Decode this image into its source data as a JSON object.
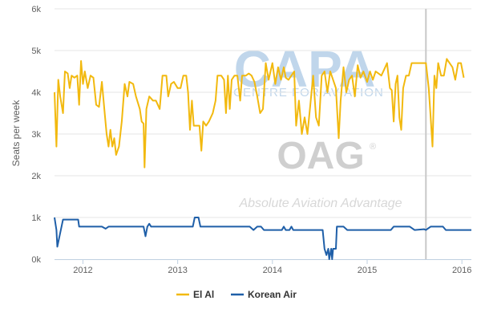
{
  "chart_data": {
    "type": "line",
    "title": "",
    "xlabel": "",
    "ylabel": "Seats per week",
    "ylim": [
      0,
      6000
    ],
    "xlim": [
      2011.7,
      2016.1
    ],
    "x_ticks": [
      2012,
      2013,
      2014,
      2015,
      2016
    ],
    "x_tick_labels": [
      "2012",
      "2013",
      "2014",
      "2015",
      "2016"
    ],
    "y_ticks": [
      0,
      1000,
      2000,
      3000,
      4000,
      5000,
      6000
    ],
    "y_tick_labels": [
      "0k",
      "1k",
      "2k",
      "3k",
      "4k",
      "5k",
      "6k"
    ],
    "grid": "horizontal",
    "legend_position": "bottom-center",
    "vertical_marker_x": 2015.62,
    "series": [
      {
        "name": "El Al",
        "color": "#F2B90F",
        "points": [
          [
            2011.7,
            4000
          ],
          [
            2011.72,
            2700
          ],
          [
            2011.74,
            4300
          ],
          [
            2011.76,
            3900
          ],
          [
            2011.79,
            3500
          ],
          [
            2011.81,
            4500
          ],
          [
            2011.84,
            4450
          ],
          [
            2011.86,
            4100
          ],
          [
            2011.88,
            4400
          ],
          [
            2011.91,
            4350
          ],
          [
            2011.94,
            4400
          ],
          [
            2011.96,
            3700
          ],
          [
            2011.98,
            4750
          ],
          [
            2012.0,
            4200
          ],
          [
            2012.02,
            4500
          ],
          [
            2012.05,
            4100
          ],
          [
            2012.08,
            4400
          ],
          [
            2012.11,
            4350
          ],
          [
            2012.14,
            3700
          ],
          [
            2012.17,
            3650
          ],
          [
            2012.2,
            4250
          ],
          [
            2012.23,
            3500
          ],
          [
            2012.25,
            3000
          ],
          [
            2012.27,
            2700
          ],
          [
            2012.29,
            3100
          ],
          [
            2012.31,
            2700
          ],
          [
            2012.33,
            2900
          ],
          [
            2012.35,
            2500
          ],
          [
            2012.38,
            2700
          ],
          [
            2012.41,
            3300
          ],
          [
            2012.44,
            4200
          ],
          [
            2012.47,
            3900
          ],
          [
            2012.49,
            4250
          ],
          [
            2012.53,
            4200
          ],
          [
            2012.56,
            3900
          ],
          [
            2012.6,
            3600
          ],
          [
            2012.62,
            3300
          ],
          [
            2012.64,
            3250
          ],
          [
            2012.65,
            2200
          ],
          [
            2012.67,
            3600
          ],
          [
            2012.7,
            3900
          ],
          [
            2012.74,
            3800
          ],
          [
            2012.77,
            3800
          ],
          [
            2012.81,
            3600
          ],
          [
            2012.84,
            4400
          ],
          [
            2012.88,
            4400
          ],
          [
            2012.9,
            3900
          ],
          [
            2012.93,
            4200
          ],
          [
            2012.96,
            4250
          ],
          [
            2013.0,
            4100
          ],
          [
            2013.03,
            4100
          ],
          [
            2013.06,
            4400
          ],
          [
            2013.09,
            4400
          ],
          [
            2013.11,
            4000
          ],
          [
            2013.13,
            3100
          ],
          [
            2013.15,
            3800
          ],
          [
            2013.17,
            3200
          ],
          [
            2013.2,
            3200
          ],
          [
            2013.23,
            3200
          ],
          [
            2013.25,
            2600
          ],
          [
            2013.27,
            3300
          ],
          [
            2013.3,
            3200
          ],
          [
            2013.33,
            3300
          ],
          [
            2013.37,
            3500
          ],
          [
            2013.4,
            3800
          ],
          [
            2013.42,
            4400
          ],
          [
            2013.46,
            4400
          ],
          [
            2013.49,
            4300
          ],
          [
            2013.51,
            3500
          ],
          [
            2013.53,
            4400
          ],
          [
            2013.55,
            3600
          ],
          [
            2013.57,
            4300
          ],
          [
            2013.6,
            4400
          ],
          [
            2013.63,
            4400
          ],
          [
            2013.66,
            3800
          ],
          [
            2013.68,
            4400
          ],
          [
            2013.72,
            4400
          ],
          [
            2013.75,
            4450
          ],
          [
            2013.78,
            4400
          ],
          [
            2013.81,
            4250
          ],
          [
            2013.84,
            3900
          ],
          [
            2013.87,
            3500
          ],
          [
            2013.9,
            3600
          ],
          [
            2013.93,
            4700
          ],
          [
            2013.96,
            4300
          ],
          [
            2014.0,
            4700
          ],
          [
            2014.03,
            4200
          ],
          [
            2014.06,
            4600
          ],
          [
            2014.09,
            4300
          ],
          [
            2014.12,
            4600
          ],
          [
            2014.14,
            4350
          ],
          [
            2014.17,
            4300
          ],
          [
            2014.2,
            4400
          ],
          [
            2014.23,
            4500
          ],
          [
            2014.25,
            3200
          ],
          [
            2014.28,
            3800
          ],
          [
            2014.31,
            3000
          ],
          [
            2014.34,
            3400
          ],
          [
            2014.37,
            3000
          ],
          [
            2014.4,
            3700
          ],
          [
            2014.43,
            4400
          ],
          [
            2014.46,
            3400
          ],
          [
            2014.49,
            3200
          ],
          [
            2014.52,
            4400
          ],
          [
            2014.55,
            4500
          ],
          [
            2014.58,
            4000
          ],
          [
            2014.61,
            4500
          ],
          [
            2014.64,
            4300
          ],
          [
            2014.67,
            4100
          ],
          [
            2014.7,
            2900
          ],
          [
            2014.72,
            3800
          ],
          [
            2014.75,
            4600
          ],
          [
            2014.78,
            4000
          ],
          [
            2014.81,
            4300
          ],
          [
            2014.84,
            4400
          ],
          [
            2014.87,
            3900
          ],
          [
            2014.9,
            4650
          ],
          [
            2014.93,
            4350
          ],
          [
            2014.96,
            4500
          ],
          [
            2015.0,
            4250
          ],
          [
            2015.03,
            4500
          ],
          [
            2015.06,
            4300
          ],
          [
            2015.09,
            4500
          ],
          [
            2015.12,
            4450
          ],
          [
            2015.15,
            4400
          ],
          [
            2015.18,
            4550
          ],
          [
            2015.21,
            4700
          ],
          [
            2015.24,
            4100
          ],
          [
            2015.26,
            4050
          ],
          [
            2015.28,
            3300
          ],
          [
            2015.3,
            4200
          ],
          [
            2015.32,
            4400
          ],
          [
            2015.34,
            3400
          ],
          [
            2015.36,
            3100
          ],
          [
            2015.38,
            4100
          ],
          [
            2015.41,
            4400
          ],
          [
            2015.44,
            4400
          ],
          [
            2015.47,
            4700
          ],
          [
            2015.52,
            4700
          ],
          [
            2015.57,
            4700
          ],
          [
            2015.62,
            4700
          ],
          [
            2015.65,
            4100
          ],
          [
            2015.67,
            3400
          ],
          [
            2015.69,
            2700
          ],
          [
            2015.71,
            4400
          ],
          [
            2015.73,
            4100
          ],
          [
            2015.75,
            4700
          ],
          [
            2015.78,
            4400
          ],
          [
            2015.81,
            4400
          ],
          [
            2015.84,
            4800
          ],
          [
            2015.87,
            4700
          ],
          [
            2015.9,
            4600
          ],
          [
            2015.93,
            4300
          ],
          [
            2015.96,
            4700
          ],
          [
            2015.99,
            4700
          ],
          [
            2016.02,
            4350
          ]
        ]
      },
      {
        "name": "Korean Air",
        "color": "#1F5FA8",
        "points": [
          [
            2011.7,
            1000
          ],
          [
            2011.72,
            700
          ],
          [
            2011.73,
            300
          ],
          [
            2011.79,
            950
          ],
          [
            2011.95,
            950
          ],
          [
            2011.96,
            780
          ],
          [
            2012.1,
            780
          ],
          [
            2012.2,
            780
          ],
          [
            2012.24,
            730
          ],
          [
            2012.27,
            780
          ],
          [
            2012.5,
            780
          ],
          [
            2012.6,
            780
          ],
          [
            2012.64,
            780
          ],
          [
            2012.66,
            550
          ],
          [
            2012.68,
            780
          ],
          [
            2012.7,
            850
          ],
          [
            2012.72,
            780
          ],
          [
            2012.9,
            780
          ],
          [
            2013.0,
            780
          ],
          [
            2013.16,
            780
          ],
          [
            2013.18,
            1000
          ],
          [
            2013.22,
            1000
          ],
          [
            2013.24,
            780
          ],
          [
            2013.5,
            780
          ],
          [
            2013.76,
            780
          ],
          [
            2013.8,
            700
          ],
          [
            2013.84,
            780
          ],
          [
            2013.88,
            780
          ],
          [
            2013.91,
            700
          ],
          [
            2014.1,
            700
          ],
          [
            2014.12,
            780
          ],
          [
            2014.14,
            700
          ],
          [
            2014.18,
            700
          ],
          [
            2014.2,
            780
          ],
          [
            2014.22,
            700
          ],
          [
            2014.5,
            700
          ],
          [
            2014.53,
            700
          ],
          [
            2014.55,
            250
          ],
          [
            2014.57,
            100
          ],
          [
            2014.59,
            250
          ],
          [
            2014.6,
            0
          ],
          [
            2014.62,
            250
          ],
          [
            2014.63,
            0
          ],
          [
            2014.64,
            250
          ],
          [
            2014.67,
            250
          ],
          [
            2014.68,
            780
          ],
          [
            2014.75,
            780
          ],
          [
            2014.79,
            700
          ],
          [
            2015.0,
            700
          ],
          [
            2015.25,
            700
          ],
          [
            2015.28,
            780
          ],
          [
            2015.45,
            780
          ],
          [
            2015.5,
            700
          ],
          [
            2015.6,
            720
          ],
          [
            2015.62,
            700
          ],
          [
            2015.67,
            780
          ],
          [
            2015.8,
            780
          ],
          [
            2015.83,
            700
          ],
          [
            2016.1,
            700
          ]
        ]
      }
    ]
  },
  "watermark": {
    "brand_top": "CAPA",
    "brand_top_sub": "CENTRE FOR AVIATION",
    "brand_bottom": "OAG",
    "brand_bottom_mark": "®",
    "tagline": "Absolute Aviation Advantage"
  },
  "colors": {
    "grid": "#E6E6E6",
    "axis": "#C0D0E0",
    "marker_line": "#C8C8C8",
    "capa_blue": "#8DB5DB",
    "oag_grey": "#B0B0B0"
  }
}
